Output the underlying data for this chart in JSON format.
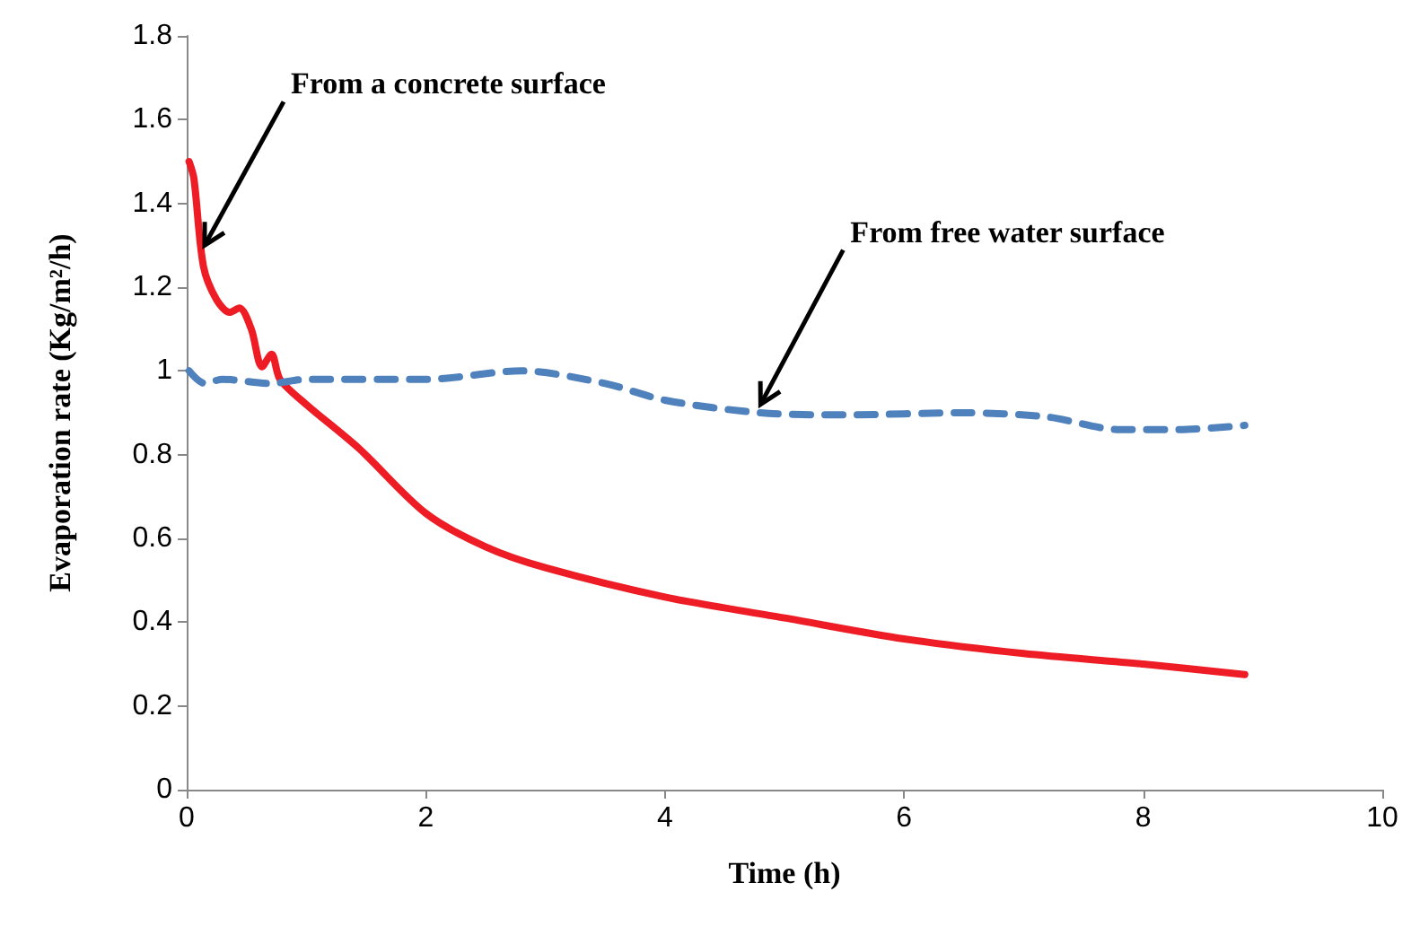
{
  "chart_data": {
    "type": "line",
    "xlabel": "Time (h)",
    "ylabel": "Evaporation rate (Kg/m²/h)",
    "xlim": [
      0,
      10
    ],
    "xticks": [
      0,
      2,
      4,
      6,
      8,
      10
    ],
    "ylim": [
      0,
      1.8
    ],
    "yticks": [
      0,
      0.2,
      0.4,
      0.6,
      0.8,
      1,
      1.2,
      1.4,
      1.6,
      1.8
    ],
    "grid": false,
    "marker": "none",
    "series": [
      {
        "color": "#ee1c25",
        "line_style": "solid",
        "x": [
          0.02,
          0.06,
          0.14,
          0.25,
          0.36,
          0.44,
          0.54,
          0.63,
          0.71,
          0.78,
          1.0,
          1.44,
          2,
          2.5,
          3,
          4,
          5,
          6,
          7,
          8,
          8.85
        ],
        "values": [
          1.5,
          1.46,
          1.25,
          1.17,
          1.14,
          1.15,
          1.1,
          1.01,
          1.04,
          0.98,
          0.92,
          0.815,
          0.66,
          0.58,
          0.53,
          0.46,
          0.41,
          0.36,
          0.325,
          0.3,
          0.275
        ]
      },
      {
        "color": "#4f81bd",
        "line_style": "dashed",
        "x": [
          0.02,
          0.15,
          0.3,
          0.7,
          1.0,
          2.0,
          2.8,
          3.5,
          4.0,
          4.8,
          5.5,
          6.5,
          7.2,
          7.8,
          8.3,
          8.85
        ],
        "values": [
          1.0,
          0.97,
          0.98,
          0.97,
          0.98,
          0.98,
          1.0,
          0.97,
          0.93,
          0.9,
          0.895,
          0.9,
          0.89,
          0.86,
          0.86,
          0.87
        ]
      }
    ],
    "annotations": [
      {
        "text": "From a concrete surface",
        "x": 0.15,
        "y": 1.3
      },
      {
        "text": "From free water surface",
        "x": 4.8,
        "y": 0.92
      }
    ]
  }
}
